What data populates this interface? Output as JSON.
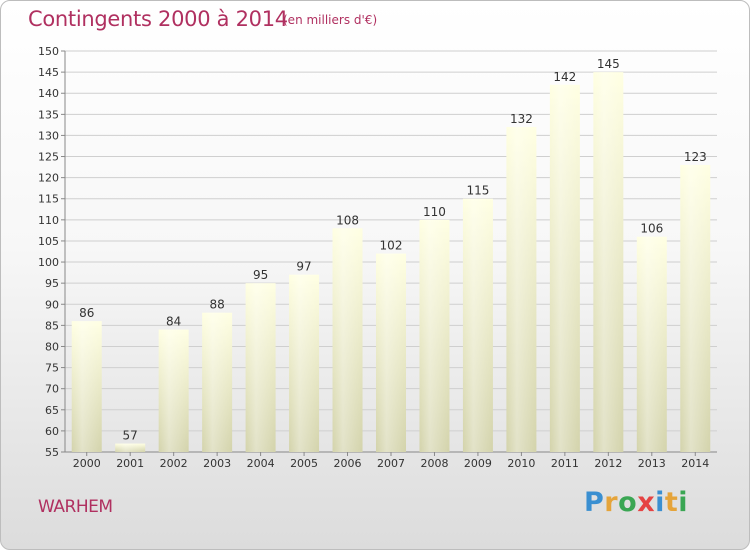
{
  "header": {
    "title": "Contingents 2000 à 2014",
    "subtitle": "(en milliers d'€)"
  },
  "footer": {
    "town": "WARHEM",
    "logo": {
      "text": "Proxiti",
      "letters": [
        "P",
        "r",
        "o",
        "x",
        "i",
        "t",
        "i"
      ],
      "colors": [
        "#3a8fd1",
        "#e5a43a",
        "#3aa653",
        "#e54343",
        "#3a8fd1",
        "#e5a43a",
        "#3aa653"
      ]
    }
  },
  "colors": {
    "title": "#b03060",
    "bar_top": "#ffffe2",
    "bar_bottom": "#d3d3ab",
    "grid": "#cfcfcf"
  },
  "chart_data": {
    "type": "bar",
    "categories": [
      "2000",
      "2001",
      "2002",
      "2003",
      "2004",
      "2005",
      "2006",
      "2007",
      "2008",
      "2009",
      "2010",
      "2011",
      "2012",
      "2013",
      "2014"
    ],
    "values": [
      86,
      57,
      84,
      88,
      95,
      97,
      108,
      102,
      110,
      115,
      132,
      142,
      145,
      106,
      123
    ],
    "title": "Contingents 2000 à 2014",
    "subtitle": "(en milliers d'€)",
    "ylim": [
      55,
      150
    ],
    "yticks": [
      55,
      60,
      65,
      70,
      75,
      80,
      85,
      90,
      95,
      100,
      105,
      110,
      115,
      120,
      125,
      130,
      135,
      140,
      145,
      150
    ],
    "grid": true,
    "data_labels": true
  }
}
